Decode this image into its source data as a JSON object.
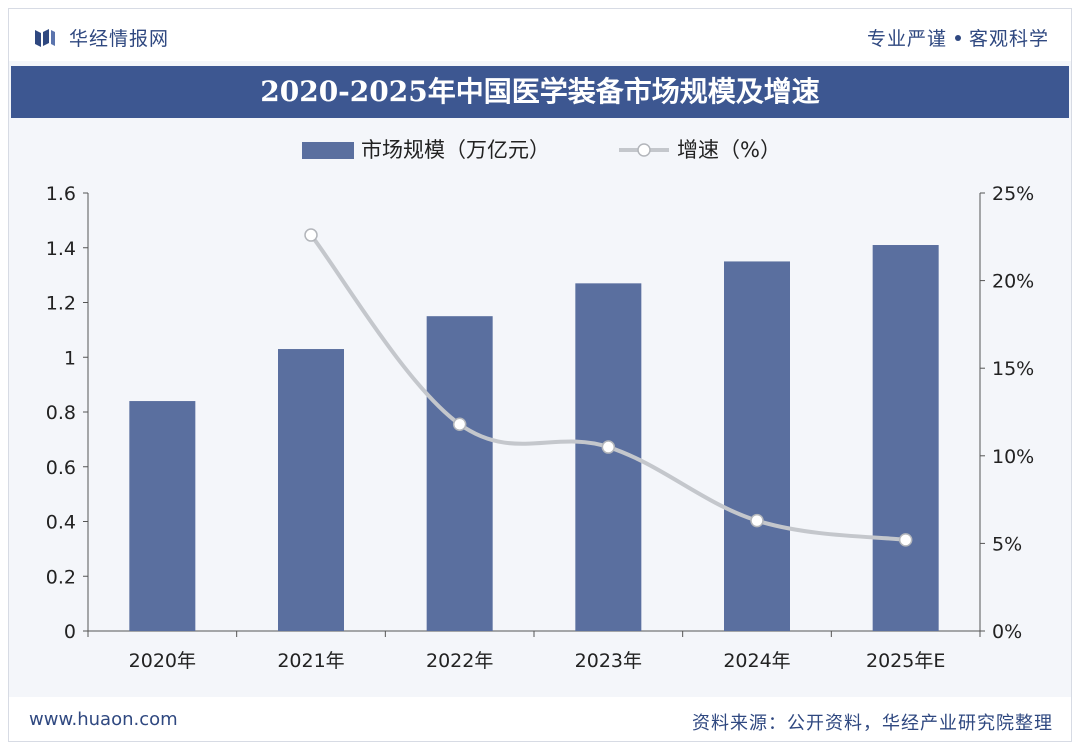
{
  "header": {
    "brand_name": "华经情报网",
    "slogan_left": "专业严谨",
    "slogan_right": "客观科学"
  },
  "footer": {
    "url": "www.huaon.com",
    "source": "资料来源：公开资料，华经产业研究院整理"
  },
  "colors": {
    "bar": "#5a6f9f",
    "line": "#c4c7cc",
    "title_bg": "#3d5791",
    "brand_text": "#2f4880"
  },
  "chart_data": {
    "type": "bar",
    "title": "2020-2025年中国医学装备市场规模及增速",
    "categories": [
      "2020年",
      "2021年",
      "2022年",
      "2023年",
      "2024年",
      "2025年E"
    ],
    "series": [
      {
        "name": "市场规模（万亿元）",
        "type": "bar",
        "axis": "left",
        "values": [
          0.84,
          1.03,
          1.15,
          1.27,
          1.35,
          1.41
        ]
      },
      {
        "name": "增速（%）",
        "type": "line",
        "axis": "right",
        "values": [
          null,
          22.6,
          11.8,
          10.5,
          6.3,
          5.2
        ]
      }
    ],
    "ylim_left": [
      0,
      1.6
    ],
    "yticks_left": [
      "0",
      "0.2",
      "0.4",
      "0.6",
      "0.8",
      "1",
      "1.2",
      "1.4",
      "1.6"
    ],
    "ylim_right": [
      0,
      25
    ],
    "yticks_right": [
      "0%",
      "5%",
      "10%",
      "15%",
      "20%",
      "25%"
    ],
    "legend_position": "top-center",
    "grid": false
  }
}
